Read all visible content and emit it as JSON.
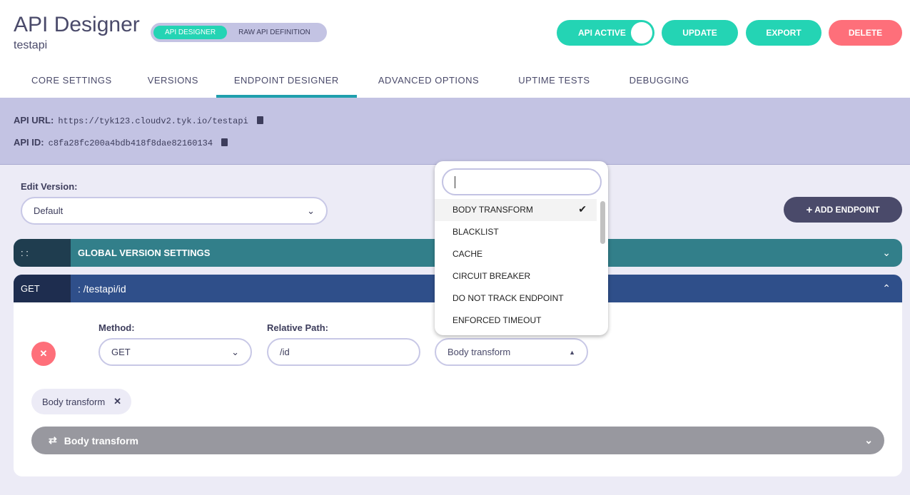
{
  "header": {
    "title": "API Designer",
    "subtitle": "testapi",
    "mode_tabs": [
      "API DESIGNER",
      "RAW API DEFINITION"
    ],
    "active_toggle": "API ACTIVE",
    "update": "UPDATE",
    "export": "EXPORT",
    "delete": "DELETE"
  },
  "tabs": [
    "CORE SETTINGS",
    "VERSIONS",
    "ENDPOINT DESIGNER",
    "ADVANCED OPTIONS",
    "UPTIME TESTS",
    "DEBUGGING"
  ],
  "info": {
    "url_label": "API URL:",
    "url": "https://tyk123.cloudv2.tyk.io/testapi",
    "id_label": "API ID:",
    "id": "c8fa28fc200a4bdb418f8dae82160134"
  },
  "edit_version": {
    "label": "Edit Version:",
    "value": "Default"
  },
  "add_endpoint": "ADD ENDPOINT",
  "global": {
    "key": ": :",
    "title": "GLOBAL VERSION SETTINGS"
  },
  "endpoint": {
    "method_key": "GET",
    "path_title": ": /testapi/id",
    "method_label": "Method:",
    "method": "GET",
    "path_label": "Relative Path:",
    "path": "/id",
    "plugin": "Body transform",
    "chip": "Body transform",
    "section": "Body transform"
  },
  "dropdown": {
    "search": "",
    "options": [
      "BODY TRANSFORM",
      "BLACKLIST",
      "CACHE",
      "CIRCUIT BREAKER",
      "DO NOT TRACK ENDPOINT",
      "ENFORCED TIMEOUT"
    ],
    "selected": "BODY TRANSFORM"
  },
  "colors": {
    "teal": "#24d4b4",
    "red": "#fe6f7a",
    "global_bar": "#327f8a",
    "endpoint_bar": "#2f4f8a"
  }
}
